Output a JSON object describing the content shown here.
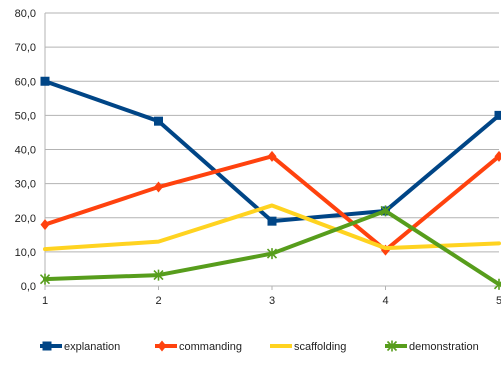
{
  "chart_data": {
    "type": "line",
    "categories": [
      "1",
      "2",
      "3",
      "4",
      "5"
    ],
    "x": [
      1,
      2,
      3,
      4,
      5
    ],
    "ylim": [
      0,
      80
    ],
    "yticks": [
      0,
      10,
      20,
      30,
      40,
      50,
      60,
      70,
      80
    ],
    "ytick_labels": [
      "0,0",
      "10,0",
      "20,0",
      "30,0",
      "40,0",
      "50,0",
      "60,0",
      "70,0",
      "80,0"
    ],
    "grid": true,
    "legend_position": "bottom",
    "series": [
      {
        "name": "explanation",
        "color": "#004586",
        "marker": "square",
        "values": [
          60.0,
          48.3,
          19.0,
          22.0,
          50.0
        ]
      },
      {
        "name": "commanding",
        "color": "#ff420e",
        "marker": "diamond",
        "values": [
          18.0,
          29.0,
          38.0,
          10.5,
          38.0
        ]
      },
      {
        "name": "scaffolding",
        "color": "#ffd320",
        "marker": "none",
        "values": [
          10.8,
          13.0,
          23.6,
          11.1,
          12.5
        ]
      },
      {
        "name": "demonstration",
        "color": "#579d1c",
        "marker": "asterisk",
        "values": [
          2.0,
          3.2,
          9.5,
          22.0,
          0.5
        ]
      }
    ]
  }
}
